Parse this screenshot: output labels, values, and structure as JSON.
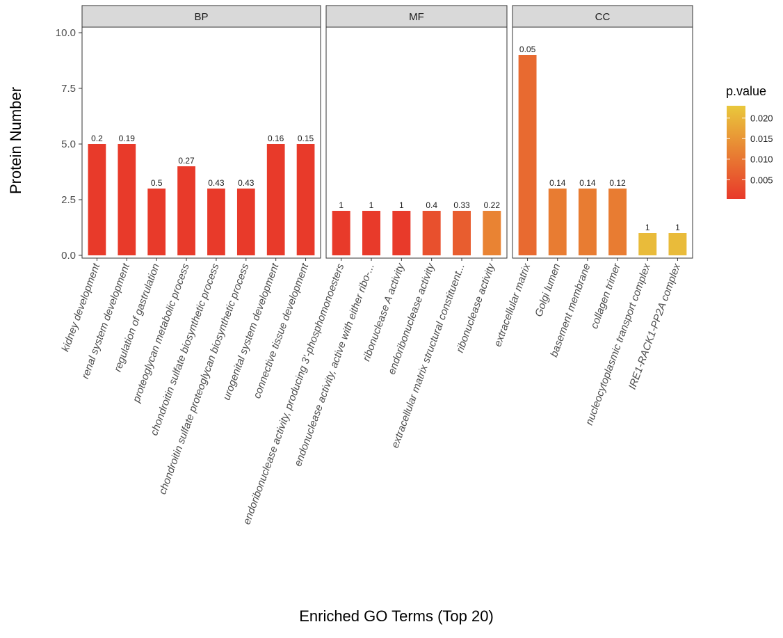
{
  "chart_data": {
    "type": "bar",
    "xlabel": "Enriched GO Terms (Top 20)",
    "ylabel": "Protein Number",
    "ylim": [
      0,
      10.5
    ],
    "yticks": [
      "0.0",
      "2.5",
      "5.0",
      "7.5",
      "10.0"
    ],
    "ytick_values": [
      0,
      2.5,
      5,
      7.5,
      10
    ],
    "legend": {
      "title": "p.value",
      "ticks": [
        "0.020",
        "0.015",
        "0.010",
        "0.005"
      ],
      "tick_values": [
        0.02,
        0.015,
        0.01,
        0.005
      ],
      "range": [
        0.0003,
        0.023
      ],
      "placement": "right",
      "colors": [
        "#e8392a",
        "#e9c83c"
      ]
    },
    "panels": [
      {
        "name": "BP",
        "categories": [
          "kidney development",
          "renal system development",
          "regulation of gastrulation",
          "proteoglycan metabolic process",
          "chondroitin sulfate biosynthetic process",
          "chondroitin sulfate proteoglycan biosynthetic process",
          "urogenital system development",
          "connective tissue development"
        ],
        "values": [
          5,
          5,
          3,
          4,
          3,
          3,
          5,
          5
        ],
        "labels": [
          "0.2",
          "0.19",
          "0.5",
          "0.27",
          "0.43",
          "0.43",
          "0.16",
          "0.15"
        ],
        "pvalues": [
          0.0004,
          0.0004,
          0.0004,
          0.0005,
          0.0004,
          0.0004,
          0.0004,
          0.0004
        ]
      },
      {
        "name": "MF",
        "categories": [
          "endoribonuclease activity, producing 3'-phosphomonoesters",
          "endonuclease activity, active with either ribo-...",
          "ribonuclease A activity",
          "endoribonuclease activity",
          "extracellular matrix structural constituent...",
          "ribonuclease activity"
        ],
        "values": [
          2,
          2,
          2,
          2,
          2,
          2
        ],
        "labels": [
          "1",
          "1",
          "1",
          "0.4",
          "0.33",
          "0.22"
        ],
        "pvalues": [
          0.0005,
          0.0005,
          0.0005,
          0.004,
          0.006,
          0.012
        ]
      },
      {
        "name": "CC",
        "categories": [
          "extracellular matrix",
          "Golgi lumen",
          "basement membrane",
          "collagen trimer",
          "nucleocytoplasmic transport complex",
          "IRE1-RACK1-PP2A complex"
        ],
        "values": [
          9,
          3,
          3,
          3,
          1,
          1
        ],
        "labels": [
          "0.05",
          "0.14",
          "0.14",
          "0.12",
          "1",
          "1"
        ],
        "pvalues": [
          0.008,
          0.011,
          0.011,
          0.011,
          0.021,
          0.021
        ]
      }
    ]
  }
}
